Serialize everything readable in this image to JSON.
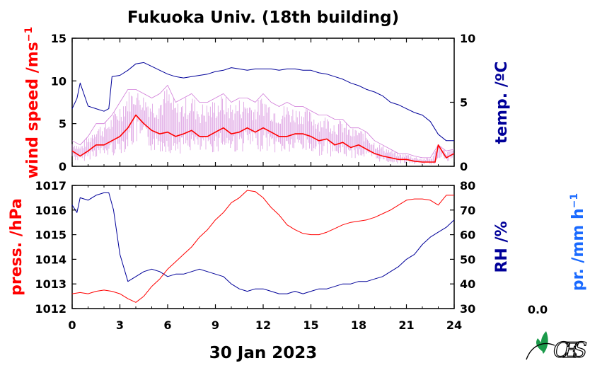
{
  "title": "Fukuoka Univ. (18th building)",
  "date_label": "30 Jan 2023",
  "precip_value": "0.0",
  "colors": {
    "red": "#ff0000",
    "navy": "#000099",
    "blue": "#1a6aff",
    "pink": "#d07ad8",
    "logo_green": "#1a9a4a"
  },
  "chart_data": [
    {
      "type": "line",
      "panel": "top",
      "xlabel": "",
      "xlim": [
        0,
        24
      ],
      "xticks": [
        "0",
        "3",
        "6",
        "9",
        "12",
        "15",
        "18",
        "21",
        "24"
      ],
      "left_axis": {
        "label_main": "wind speed /ms",
        "label_sup": "−1",
        "ylim": [
          0,
          15
        ],
        "ticks": [
          "0",
          "5",
          "10",
          "15"
        ],
        "color": "#ff0000"
      },
      "right_axis": {
        "label": "temp. /ºC",
        "ylim": [
          0,
          10
        ],
        "ticks": [
          "0",
          "5",
          "10"
        ],
        "color": "#000099"
      },
      "series": [
        {
          "axis": "left",
          "color": "#ff0000",
          "style": "average",
          "x": [
            0.0,
            0.5,
            1.0,
            1.5,
            2.0,
            2.5,
            3.0,
            3.5,
            4.0,
            4.5,
            5.0,
            5.5,
            6.0,
            6.5,
            7.0,
            7.5,
            8.0,
            8.5,
            9.0,
            9.5,
            10.0,
            10.5,
            11.0,
            11.5,
            12.0,
            12.5,
            13.0,
            13.5,
            14.0,
            14.5,
            15.0,
            15.5,
            16.0,
            16.5,
            17.0,
            17.5,
            18.0,
            18.5,
            19.0,
            19.5,
            20.0,
            20.5,
            21.0,
            21.5,
            22.0,
            22.5,
            22.8,
            23.0,
            23.5,
            24.0
          ],
          "y": [
            1.8,
            1.2,
            1.8,
            2.5,
            2.5,
            3.0,
            3.5,
            4.5,
            6.0,
            5.0,
            4.2,
            3.8,
            4.0,
            3.5,
            3.8,
            4.2,
            3.5,
            3.5,
            4.0,
            4.5,
            3.8,
            4.0,
            4.5,
            4.0,
            4.5,
            4.0,
            3.5,
            3.5,
            3.8,
            3.8,
            3.5,
            3.0,
            3.2,
            2.5,
            2.8,
            2.2,
            2.5,
            2.0,
            1.5,
            1.2,
            1.0,
            0.8,
            0.8,
            0.6,
            0.5,
            0.5,
            0.5,
            2.5,
            1.0,
            1.5
          ]
        },
        {
          "axis": "left",
          "color": "#d07ad8",
          "style": "gust",
          "x": [
            0.0,
            0.5,
            1.0,
            1.5,
            2.0,
            2.5,
            3.0,
            3.5,
            4.0,
            4.5,
            5.0,
            5.5,
            6.0,
            6.5,
            7.0,
            7.5,
            8.0,
            8.5,
            9.0,
            9.5,
            10.0,
            10.5,
            11.0,
            11.5,
            12.0,
            12.5,
            13.0,
            13.5,
            14.0,
            14.5,
            15.0,
            15.5,
            16.0,
            16.5,
            17.0,
            17.5,
            18.0,
            18.5,
            19.0,
            19.5,
            20.0,
            20.5,
            21.0,
            21.5,
            22.0,
            22.5,
            23.0,
            23.5,
            24.0
          ],
          "y": [
            3.0,
            2.5,
            3.5,
            5.0,
            5.0,
            6.0,
            7.5,
            9.0,
            9.0,
            8.5,
            8.0,
            8.5,
            9.5,
            7.5,
            8.0,
            8.5,
            7.5,
            7.5,
            8.0,
            8.5,
            7.5,
            8.0,
            8.0,
            7.5,
            8.5,
            7.5,
            7.0,
            7.5,
            7.0,
            7.0,
            6.5,
            6.0,
            6.0,
            5.5,
            5.5,
            4.5,
            4.5,
            4.0,
            3.0,
            2.5,
            2.0,
            1.5,
            1.5,
            1.2,
            1.0,
            1.0,
            2.5,
            1.8,
            2.0
          ]
        },
        {
          "axis": "right",
          "color": "#000099",
          "style": "temperature",
          "x": [
            0.0,
            0.3,
            0.5,
            1.0,
            1.5,
            2.0,
            2.3,
            2.5,
            3.0,
            3.5,
            4.0,
            4.5,
            5.0,
            5.5,
            6.0,
            6.5,
            7.0,
            7.5,
            8.0,
            8.5,
            9.0,
            9.5,
            10.0,
            10.5,
            11.0,
            11.5,
            12.0,
            12.5,
            13.0,
            13.5,
            14.0,
            14.5,
            15.0,
            15.5,
            16.0,
            16.5,
            17.0,
            17.5,
            18.0,
            18.5,
            19.0,
            19.5,
            20.0,
            20.5,
            21.0,
            21.5,
            22.0,
            22.5,
            23.0,
            23.5,
            24.0
          ],
          "y": [
            4.5,
            5.3,
            6.5,
            4.7,
            4.5,
            4.3,
            4.5,
            7.0,
            7.1,
            7.5,
            8.0,
            8.1,
            7.8,
            7.5,
            7.2,
            7.0,
            6.9,
            7.0,
            7.1,
            7.2,
            7.4,
            7.5,
            7.7,
            7.6,
            7.5,
            7.6,
            7.6,
            7.6,
            7.5,
            7.6,
            7.6,
            7.5,
            7.5,
            7.3,
            7.2,
            7.0,
            6.8,
            6.5,
            6.3,
            6.0,
            5.8,
            5.5,
            5.0,
            4.8,
            4.5,
            4.2,
            4.0,
            3.5,
            2.5,
            2.0,
            2.0
          ]
        }
      ]
    },
    {
      "type": "line",
      "panel": "bottom",
      "xlabel": "30 Jan 2023",
      "xlim": [
        0,
        24
      ],
      "xticks": [
        "0",
        "3",
        "6",
        "9",
        "12",
        "15",
        "18",
        "21",
        "24"
      ],
      "left_axis": {
        "label": "press. /hPa",
        "ylim": [
          1012,
          1017
        ],
        "ticks": [
          "1012",
          "1013",
          "1014",
          "1015",
          "1016",
          "1017"
        ],
        "color": "#ff0000"
      },
      "right_axis": {
        "label": "RH /%",
        "ylim": [
          30,
          80
        ],
        "ticks": [
          "30",
          "40",
          "50",
          "60",
          "70",
          "80"
        ],
        "color": "#000099"
      },
      "far_right_axis": {
        "label_main": "pr. /mm h",
        "label_sup": "−1",
        "color": "#1a6aff"
      },
      "series": [
        {
          "axis": "left",
          "color": "#ff0000",
          "style": "pressure",
          "x": [
            0.0,
            0.5,
            1.0,
            1.5,
            2.0,
            2.5,
            3.0,
            3.5,
            4.0,
            4.5,
            5.0,
            5.5,
            6.0,
            6.5,
            7.0,
            7.5,
            8.0,
            8.5,
            9.0,
            9.5,
            10.0,
            10.5,
            11.0,
            11.5,
            12.0,
            12.5,
            13.0,
            13.5,
            14.0,
            14.5,
            15.0,
            15.5,
            16.0,
            16.5,
            17.0,
            17.5,
            18.0,
            18.5,
            19.0,
            19.5,
            20.0,
            20.5,
            21.0,
            21.5,
            22.0,
            22.5,
            23.0,
            23.5,
            24.0
          ],
          "y": [
            1012.6,
            1012.65,
            1012.6,
            1012.7,
            1012.75,
            1012.7,
            1012.6,
            1012.4,
            1012.25,
            1012.5,
            1012.9,
            1013.2,
            1013.6,
            1013.9,
            1014.2,
            1014.5,
            1014.9,
            1015.2,
            1015.6,
            1015.9,
            1016.3,
            1016.5,
            1016.8,
            1016.75,
            1016.5,
            1016.1,
            1015.8,
            1015.4,
            1015.2,
            1015.05,
            1015.0,
            1015.0,
            1015.1,
            1015.25,
            1015.4,
            1015.5,
            1015.55,
            1015.6,
            1015.7,
            1015.85,
            1016.0,
            1016.2,
            1016.4,
            1016.45,
            1016.45,
            1016.4,
            1016.2,
            1016.6,
            1016.6
          ]
        },
        {
          "axis": "right",
          "color": "#000099",
          "style": "humidity",
          "x": [
            0.0,
            0.3,
            0.5,
            1.0,
            1.5,
            2.0,
            2.3,
            2.6,
            3.0,
            3.5,
            4.0,
            4.5,
            5.0,
            5.5,
            6.0,
            6.5,
            7.0,
            7.5,
            8.0,
            8.5,
            9.0,
            9.5,
            10.0,
            10.5,
            11.0,
            11.5,
            12.0,
            12.5,
            13.0,
            13.5,
            14.0,
            14.5,
            15.0,
            15.5,
            16.0,
            16.5,
            17.0,
            17.5,
            18.0,
            18.5,
            19.0,
            19.5,
            20.0,
            20.5,
            21.0,
            21.5,
            22.0,
            22.5,
            23.0,
            23.5,
            24.0
          ],
          "y": [
            72,
            69,
            75,
            74,
            76,
            77,
            77,
            70,
            52,
            41,
            43,
            45,
            46,
            45,
            43,
            44,
            44,
            45,
            46,
            45,
            44,
            43,
            40,
            38,
            37,
            38,
            38,
            37,
            36,
            36,
            37,
            36,
            37,
            38,
            38,
            39,
            40,
            40,
            41,
            41,
            42,
            43,
            45,
            47,
            50,
            52,
            56,
            59,
            61,
            63,
            66
          ]
        },
        {
          "axis": "far_right",
          "color": "#1a6aff",
          "style": "precipitation",
          "x": [],
          "y": []
        }
      ]
    }
  ],
  "logo": {
    "text": "CES"
  }
}
